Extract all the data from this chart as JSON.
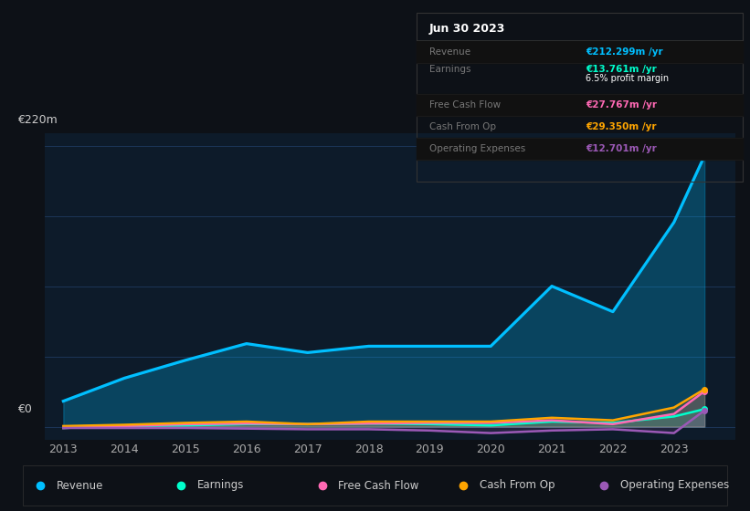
{
  "bg_color": "#0d1117",
  "plot_bg_color": "#0d1b2a",
  "grid_color": "#1e3a5f",
  "years": [
    2013,
    2014,
    2015,
    2016,
    2017,
    2018,
    2019,
    2020,
    2021,
    2022,
    2023,
    2023.5
  ],
  "revenue": [
    20,
    38,
    52,
    65,
    58,
    63,
    63,
    63,
    110,
    90,
    160,
    212
  ],
  "earnings": [
    -1,
    0.5,
    1,
    2,
    2,
    2.5,
    2,
    1,
    4,
    3,
    8,
    13.761
  ],
  "free_cash_flow": [
    -1,
    0.5,
    2,
    2.5,
    2,
    2.5,
    3,
    3,
    5,
    2,
    10,
    27.767
  ],
  "cash_from_op": [
    0.5,
    1.5,
    3,
    4,
    2,
    4,
    4,
    4,
    7,
    5,
    15,
    29.35
  ],
  "operating_expenses": [
    -1,
    -1,
    -1,
    -1.5,
    -2,
    -2,
    -3,
    -5,
    -3,
    -2,
    -5,
    12.701
  ],
  "revenue_color": "#00bfff",
  "earnings_color": "#00ffcc",
  "free_cash_flow_color": "#ff69b4",
  "cash_from_op_color": "#ffa500",
  "operating_expenses_color": "#9b59b6",
  "ylim": [
    -10,
    230
  ],
  "y_tick_labels": [
    "€0",
    "€220m"
  ],
  "x_ticks": [
    2013,
    2014,
    2015,
    2016,
    2017,
    2018,
    2019,
    2020,
    2021,
    2022,
    2023
  ],
  "info_box": {
    "date": "Jun 30 2023",
    "revenue_val": "€212.299m /yr",
    "earnings_val": "€13.761m /yr",
    "profit_margin": "6.5% profit margin",
    "fcf_val": "€27.767m /yr",
    "cfop_val": "€29.350m /yr",
    "opex_val": "€12.701m /yr"
  },
  "legend_items": [
    {
      "label": "Revenue",
      "color": "#00bfff"
    },
    {
      "label": "Earnings",
      "color": "#00ffcc"
    },
    {
      "label": "Free Cash Flow",
      "color": "#ff69b4"
    },
    {
      "label": "Cash From Op",
      "color": "#ffa500"
    },
    {
      "label": "Operating Expenses",
      "color": "#9b59b6"
    }
  ]
}
